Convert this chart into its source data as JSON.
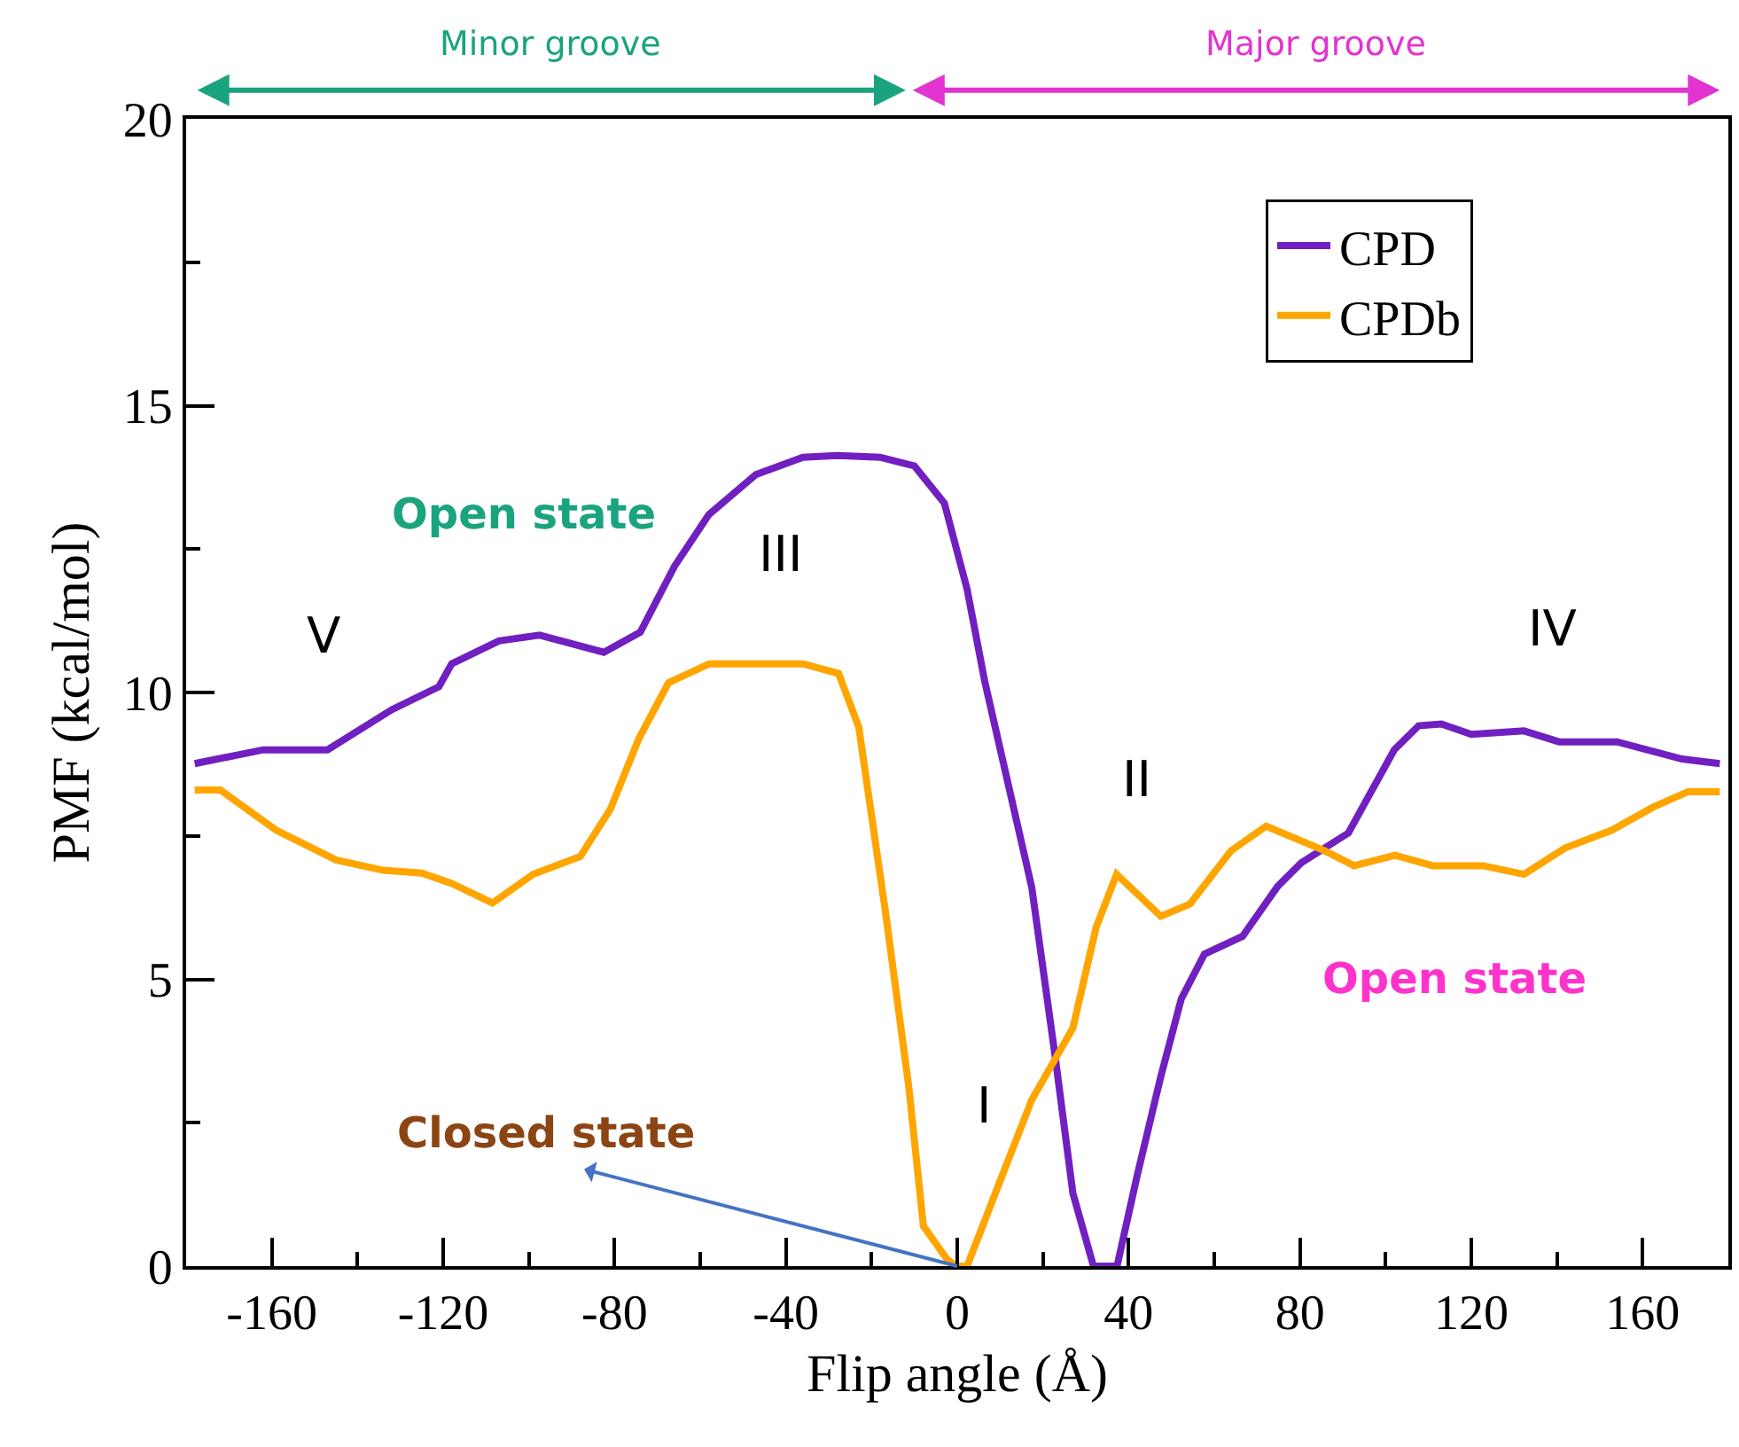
{
  "chart_data": {
    "type": "line",
    "xlabel": "Flip angle (Å)",
    "ylabel": "PMF (kcal/mol)",
    "xlim": [
      -180,
      180
    ],
    "ylim": [
      0,
      20
    ],
    "xticks": [
      {
        "value": -180,
        "label": null
      },
      -160,
      {
        "value": -140,
        "label": null
      },
      -120,
      {
        "value": -100,
        "label": null
      },
      -80,
      {
        "value": -60,
        "label": null
      },
      -40,
      {
        "value": -20,
        "label": null
      },
      0,
      {
        "value": 20,
        "label": null
      },
      40,
      {
        "value": 60,
        "label": null
      },
      80,
      {
        "value": 100,
        "label": null
      },
      120,
      {
        "value": 140,
        "label": null
      },
      160,
      {
        "value": 180,
        "label": null
      }
    ],
    "yticks": [
      0,
      {
        "value": 2.5,
        "label": null
      },
      5,
      {
        "value": 7.5,
        "label": null
      },
      10,
      {
        "value": 12.5,
        "label": null
      },
      15,
      {
        "value": 17.5,
        "label": null
      },
      20
    ],
    "legend": "top right",
    "marker": "none",
    "line_style": "solid",
    "series": [
      {
        "name": "CPD",
        "color": "#7020c0",
        "x": [
          -178,
          -162,
          -147,
          -132,
          -121,
          -118,
          -107,
          -97.5,
          -82.5,
          -74,
          -66,
          -58,
          -47,
          -36,
          -28,
          -18,
          -10,
          -3,
          2.3,
          6.4,
          17.4,
          22.9,
          27,
          31.8,
          37.3,
          42,
          47.5,
          52.3,
          57.7,
          66.6,
          74.8,
          80.3,
          91.3,
          102,
          107.7,
          113,
          120,
          132.3,
          140.5,
          154,
          169.2,
          178
        ],
        "values": [
          8.76,
          9.0,
          9.0,
          9.7,
          10.1,
          10.5,
          10.9,
          11.0,
          10.7,
          11.05,
          12.2,
          13.1,
          13.8,
          14.1,
          14.13,
          14.1,
          13.95,
          13.3,
          11.8,
          10.2,
          6.6,
          3.63,
          1.27,
          0,
          0,
          1.58,
          3.3,
          4.66,
          5.44,
          5.75,
          6.62,
          7.03,
          7.55,
          9.0,
          9.42,
          9.45,
          9.27,
          9.33,
          9.14,
          9.14,
          8.84,
          8.76
        ]
      },
      {
        "name": "CPDb",
        "color": "#ffa500",
        "x": [
          -178,
          -172,
          -159,
          -145,
          -134,
          -125,
          -118,
          -108.5,
          -99,
          -88,
          -81,
          -74.3,
          -67.4,
          -57.9,
          -36,
          -27.7,
          -23,
          -16.8,
          -11.3,
          -7.9,
          -2.5,
          -0.4,
          2.3,
          10.5,
          17.4,
          27,
          32.4,
          37.2,
          47.5,
          54.3,
          63.9,
          72.1,
          85.8,
          92.6,
          102.2,
          111,
          122.7,
          132.3,
          141.9,
          152.8,
          162.4,
          170.6,
          178
        ],
        "values": [
          8.3,
          8.3,
          7.6,
          7.08,
          6.9,
          6.85,
          6.67,
          6.33,
          6.83,
          7.14,
          7.96,
          9.2,
          10.17,
          10.5,
          10.5,
          10.33,
          9.4,
          6.2,
          3.12,
          0.7,
          0.13,
          0,
          0,
          1.58,
          2.9,
          4.15,
          5.9,
          6.83,
          6.1,
          6.31,
          7.24,
          7.67,
          7.24,
          6.98,
          7.16,
          6.98,
          6.98,
          6.83,
          7.29,
          7.6,
          8.0,
          8.27,
          8.27
        ]
      }
    ],
    "annotations": [
      "Minor groove",
      "Major groove",
      "Open state",
      "V",
      "III",
      "IV",
      "II",
      "I",
      "Open state",
      {
        "text": "Closed state",
        "x": 0,
        "y": 0
      }
    ]
  }
}
